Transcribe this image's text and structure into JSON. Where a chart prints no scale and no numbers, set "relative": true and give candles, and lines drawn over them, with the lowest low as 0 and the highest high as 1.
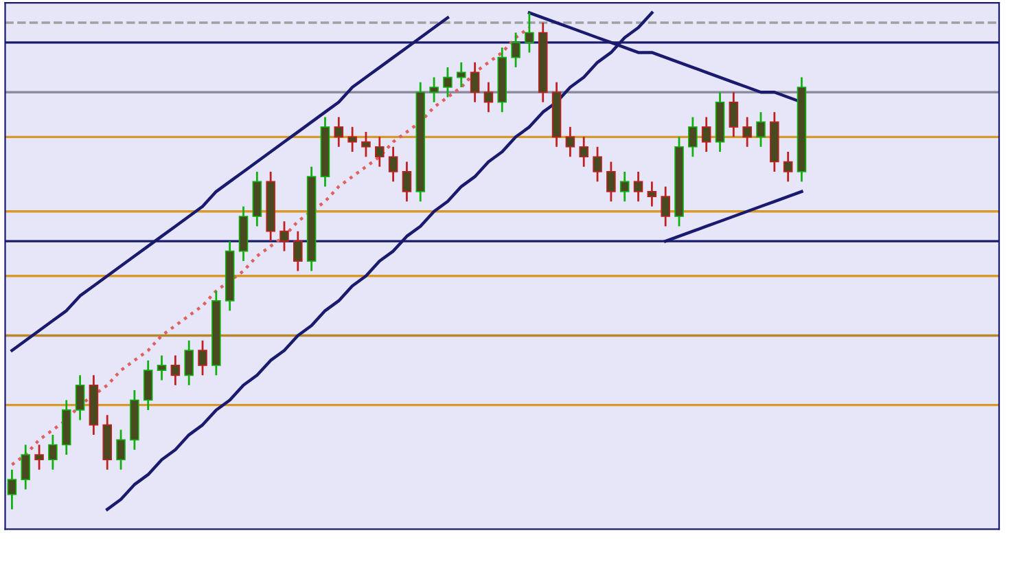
{
  "chart_data": {
    "type": "candlestick",
    "relative": true,
    "categories": [
      null,
      null,
      null,
      null,
      null,
      null,
      null,
      null,
      null,
      null,
      null,
      null,
      null,
      null,
      null,
      null,
      null,
      null,
      null,
      null,
      null,
      null,
      null,
      null,
      null,
      null,
      null,
      null,
      null,
      null,
      null,
      null,
      null,
      null,
      null,
      null,
      null,
      null,
      null,
      null,
      null,
      null,
      null,
      null,
      null,
      null,
      null,
      null,
      null,
      null,
      null,
      null,
      null,
      null,
      null,
      null,
      null,
      null,
      null
    ],
    "ohlc": [
      [
        0.03,
        0.08,
        0.0,
        0.06
      ],
      [
        0.06,
        0.13,
        0.04,
        0.11
      ],
      [
        0.11,
        0.13,
        0.08,
        0.1
      ],
      [
        0.1,
        0.15,
        0.08,
        0.13
      ],
      [
        0.13,
        0.22,
        0.11,
        0.2
      ],
      [
        0.2,
        0.27,
        0.18,
        0.25
      ],
      [
        0.25,
        0.27,
        0.15,
        0.17
      ],
      [
        0.17,
        0.19,
        0.08,
        0.1
      ],
      [
        0.1,
        0.16,
        0.08,
        0.14
      ],
      [
        0.14,
        0.24,
        0.12,
        0.22
      ],
      [
        0.22,
        0.3,
        0.2,
        0.28
      ],
      [
        0.28,
        0.31,
        0.26,
        0.29
      ],
      [
        0.29,
        0.31,
        0.25,
        0.27
      ],
      [
        0.27,
        0.34,
        0.25,
        0.32
      ],
      [
        0.32,
        0.34,
        0.27,
        0.29
      ],
      [
        0.29,
        0.44,
        0.27,
        0.42
      ],
      [
        0.42,
        0.54,
        0.4,
        0.52
      ],
      [
        0.52,
        0.61,
        0.5,
        0.59
      ],
      [
        0.59,
        0.68,
        0.57,
        0.66
      ],
      [
        0.66,
        0.68,
        0.54,
        0.56
      ],
      [
        0.56,
        0.58,
        0.52,
        0.54
      ],
      [
        0.54,
        0.56,
        0.48,
        0.5
      ],
      [
        0.5,
        0.69,
        0.48,
        0.67
      ],
      [
        0.67,
        0.79,
        0.65,
        0.77
      ],
      [
        0.77,
        0.79,
        0.73,
        0.75
      ],
      [
        0.75,
        0.77,
        0.72,
        0.74
      ],
      [
        0.74,
        0.76,
        0.71,
        0.73
      ],
      [
        0.73,
        0.75,
        0.69,
        0.71
      ],
      [
        0.71,
        0.73,
        0.66,
        0.68
      ],
      [
        0.68,
        0.7,
        0.62,
        0.64
      ],
      [
        0.64,
        0.86,
        0.62,
        0.84
      ],
      [
        0.84,
        0.87,
        0.82,
        0.85
      ],
      [
        0.85,
        0.89,
        0.83,
        0.87
      ],
      [
        0.87,
        0.9,
        0.85,
        0.88
      ],
      [
        0.88,
        0.9,
        0.82,
        0.84
      ],
      [
        0.84,
        0.86,
        0.8,
        0.82
      ],
      [
        0.82,
        0.93,
        0.8,
        0.91
      ],
      [
        0.91,
        0.96,
        0.89,
        0.94
      ],
      [
        0.94,
        1.0,
        0.92,
        0.96
      ],
      [
        0.96,
        0.98,
        0.82,
        0.84
      ],
      [
        0.84,
        0.86,
        0.73,
        0.75
      ],
      [
        0.75,
        0.77,
        0.71,
        0.73
      ],
      [
        0.73,
        0.75,
        0.69,
        0.71
      ],
      [
        0.71,
        0.73,
        0.66,
        0.68
      ],
      [
        0.68,
        0.7,
        0.62,
        0.64
      ],
      [
        0.64,
        0.68,
        0.62,
        0.66
      ],
      [
        0.66,
        0.68,
        0.62,
        0.64
      ],
      [
        0.64,
        0.66,
        0.61,
        0.63
      ],
      [
        0.63,
        0.65,
        0.57,
        0.59
      ],
      [
        0.59,
        0.75,
        0.57,
        0.73
      ],
      [
        0.73,
        0.79,
        0.71,
        0.77
      ],
      [
        0.77,
        0.79,
        0.72,
        0.74
      ],
      [
        0.74,
        0.84,
        0.72,
        0.82
      ],
      [
        0.82,
        0.84,
        0.75,
        0.77
      ],
      [
        0.77,
        0.79,
        0.73,
        0.75
      ],
      [
        0.75,
        0.8,
        0.73,
        0.78
      ],
      [
        0.78,
        0.8,
        0.68,
        0.7
      ],
      [
        0.7,
        0.72,
        0.66,
        0.68
      ],
      [
        0.68,
        0.87,
        0.66,
        0.85
      ]
    ],
    "series": [
      {
        "type": "line",
        "color": "#1a1a6e",
        "values": [
          0.32,
          0.34,
          0.36,
          0.38,
          0.4,
          0.43,
          0.45,
          0.47,
          0.49,
          0.51,
          0.53,
          0.55,
          0.57,
          0.59,
          0.61,
          0.64,
          0.66,
          0.68,
          0.7,
          0.72,
          0.74,
          0.76,
          0.78,
          0.8,
          0.82,
          0.85,
          0.87,
          0.89,
          0.91,
          0.93,
          0.95,
          0.97,
          0.99,
          null,
          null,
          null,
          null,
          null,
          null,
          null,
          null,
          null,
          null,
          null,
          null,
          null,
          null,
          null,
          null,
          null,
          null,
          null,
          null,
          null,
          null,
          null,
          null,
          null,
          null
        ]
      },
      {
        "type": "line",
        "color": "#1a1a6e",
        "values": [
          null,
          null,
          null,
          null,
          null,
          null,
          null,
          0.0,
          0.02,
          0.05,
          0.07,
          0.1,
          0.12,
          0.15,
          0.17,
          0.2,
          0.22,
          0.25,
          0.27,
          0.3,
          0.32,
          0.35,
          0.37,
          0.4,
          0.42,
          0.45,
          0.47,
          0.5,
          0.52,
          0.55,
          0.57,
          0.6,
          0.62,
          0.65,
          0.67,
          0.7,
          0.72,
          0.75,
          0.77,
          0.8,
          0.82,
          0.85,
          0.87,
          0.9,
          0.92,
          0.95,
          0.97,
          1.0,
          null,
          null,
          null,
          null,
          null,
          null,
          null,
          null,
          null,
          null,
          null
        ]
      },
      {
        "type": "line",
        "color": "#1a1a6e",
        "values": [
          null,
          null,
          null,
          null,
          null,
          null,
          null,
          null,
          null,
          null,
          null,
          null,
          null,
          null,
          null,
          null,
          null,
          null,
          null,
          null,
          null,
          null,
          null,
          null,
          null,
          null,
          null,
          null,
          null,
          null,
          null,
          null,
          null,
          null,
          null,
          null,
          null,
          null,
          1.0,
          0.99,
          0.98,
          0.97,
          0.96,
          0.95,
          0.94,
          0.93,
          0.92,
          0.92,
          0.91,
          0.9,
          0.89,
          0.88,
          0.87,
          0.86,
          0.85,
          0.84,
          0.84,
          0.83,
          0.82
        ]
      },
      {
        "type": "line",
        "color": "#1a1a6e",
        "values": [
          null,
          null,
          null,
          null,
          null,
          null,
          null,
          null,
          null,
          null,
          null,
          null,
          null,
          null,
          null,
          null,
          null,
          null,
          null,
          null,
          null,
          null,
          null,
          null,
          null,
          null,
          null,
          null,
          null,
          null,
          null,
          null,
          null,
          null,
          null,
          null,
          null,
          null,
          null,
          null,
          null,
          null,
          null,
          null,
          null,
          null,
          null,
          null,
          0.54,
          0.55,
          0.56,
          0.57,
          0.58,
          0.59,
          0.6,
          0.61,
          0.62,
          0.63,
          0.64
        ]
      },
      {
        "type": "line",
        "color": "#e06060",
        "line_style": "dotted",
        "values": [
          0.09,
          0.11,
          0.14,
          0.16,
          0.18,
          0.21,
          0.23,
          0.25,
          0.28,
          0.3,
          0.32,
          0.35,
          0.37,
          0.39,
          0.41,
          0.44,
          0.46,
          0.48,
          0.51,
          0.53,
          0.55,
          0.58,
          0.6,
          0.62,
          0.65,
          0.67,
          0.69,
          0.71,
          0.74,
          0.76,
          0.78,
          0.81,
          0.83,
          0.85,
          0.88,
          0.9,
          0.92,
          0.95,
          0.97,
          null,
          null,
          null,
          null,
          null,
          null,
          null,
          null,
          null,
          null,
          null,
          null,
          null,
          null,
          null,
          null,
          null,
          null,
          null,
          null
        ]
      }
    ],
    "ref_lines": [
      {
        "axis": "y",
        "value": 0.98,
        "color": "#a0a0a0",
        "line_style": "dashed"
      },
      {
        "axis": "y",
        "value": 0.94,
        "color": "#1a1a6e"
      },
      {
        "axis": "y",
        "value": 0.84,
        "color": "#8c8c9c"
      },
      {
        "axis": "y",
        "value": 0.75,
        "color": "#d79a2a"
      },
      {
        "axis": "y",
        "value": 0.6,
        "color": "#d79a2a"
      },
      {
        "axis": "y",
        "value": 0.54,
        "color": "#1a1a6e"
      },
      {
        "axis": "y",
        "value": 0.47,
        "color": "#d79a2a"
      },
      {
        "axis": "y",
        "value": 0.35,
        "color": "#b8862a"
      },
      {
        "axis": "y",
        "value": 0.21,
        "color": "#d79a2a"
      }
    ]
  }
}
